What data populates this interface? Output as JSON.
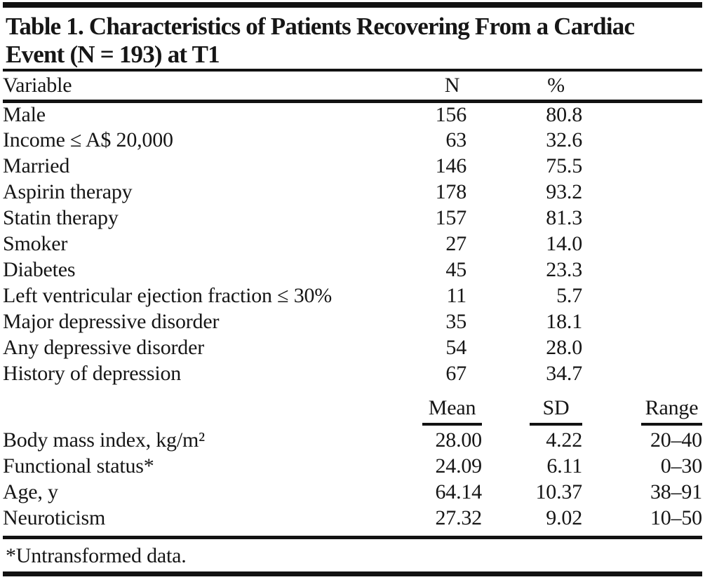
{
  "colors": {
    "ink": "#161616",
    "background": "#ffffff"
  },
  "table": {
    "title_line1": "Table 1. Characteristics of Patients Recovering From a Cardiac",
    "title_line2": "Event (N = 193) at T1",
    "section1": {
      "headers": {
        "variable": "Variable",
        "n": "N",
        "pct": "%"
      },
      "rows": [
        {
          "variable": "Male",
          "n": "156",
          "pct": "80.8"
        },
        {
          "variable": "Income ≤ A$ 20,000",
          "n": "63",
          "pct": "32.6"
        },
        {
          "variable": "Married",
          "n": "146",
          "pct": "75.5"
        },
        {
          "variable": "Aspirin therapy",
          "n": "178",
          "pct": "93.2"
        },
        {
          "variable": "Statin therapy",
          "n": "157",
          "pct": "81.3"
        },
        {
          "variable": "Smoker",
          "n": "27",
          "pct": "14.0"
        },
        {
          "variable": "Diabetes",
          "n": "45",
          "pct": "23.3"
        },
        {
          "variable": "Left ventricular ejection fraction ≤ 30%",
          "n": "11",
          "pct": "5.7"
        },
        {
          "variable": "Major depressive disorder",
          "n": "35",
          "pct": "18.1"
        },
        {
          "variable": "Any depressive disorder",
          "n": "54",
          "pct": "28.0"
        },
        {
          "variable": "History of depression",
          "n": "67",
          "pct": "34.7"
        }
      ]
    },
    "section2": {
      "headers": {
        "mean": "Mean",
        "sd": "SD",
        "range": "Range"
      },
      "rows": [
        {
          "variable": "Body mass index, kg/m²",
          "mean": "28.00",
          "sd": "4.22",
          "range": "20–40"
        },
        {
          "variable": "Functional status*",
          "mean": "24.09",
          "sd": "6.11",
          "range": "0–30"
        },
        {
          "variable": "Age, y",
          "mean": "64.14",
          "sd": "10.37",
          "range": "38–91"
        },
        {
          "variable": "Neuroticism",
          "mean": "27.32",
          "sd": "9.02",
          "range": "10–50"
        }
      ]
    },
    "footnote": "*Untransformed data."
  }
}
